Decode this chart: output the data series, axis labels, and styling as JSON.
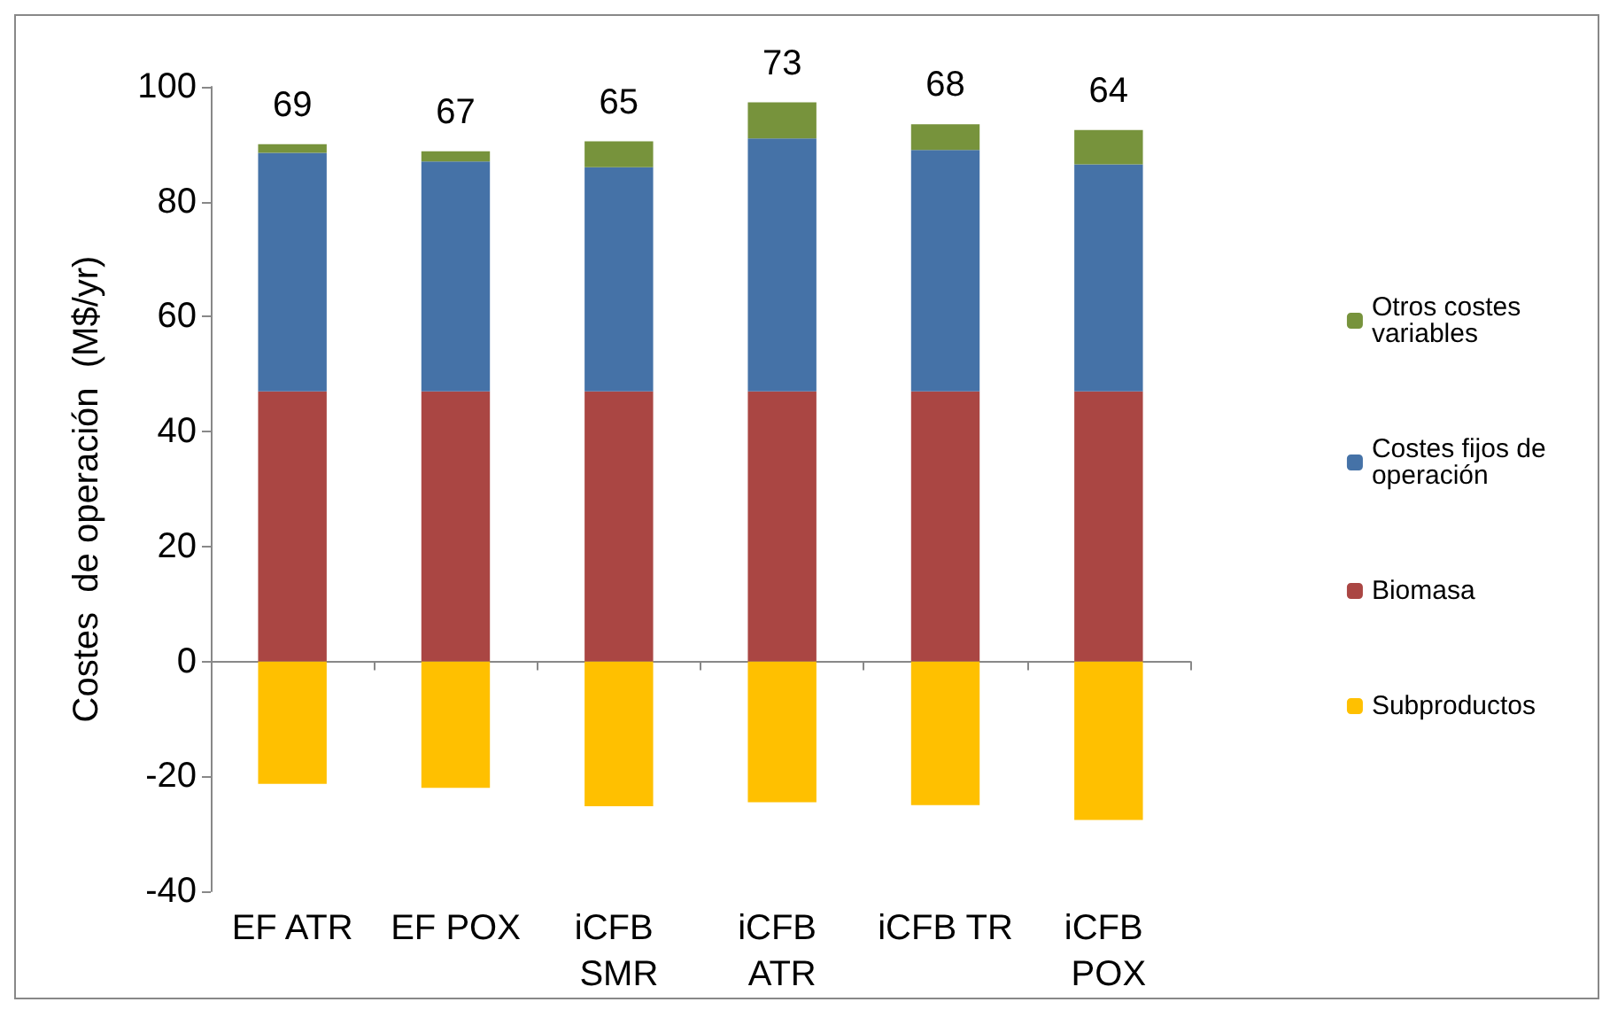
{
  "chart_data": {
    "type": "bar",
    "stacked": true,
    "ylabel": "Costes  de operación  (M$/yr)",
    "categories": [
      "EF ATR",
      "EF POX",
      "iCFB SMR",
      "iCFB ATR",
      "iCFB TR",
      "iCFB POX"
    ],
    "series": [
      {
        "name": "Subproductos",
        "color": "#ffc000",
        "values": [
          -21.3,
          -22,
          -25.2,
          -24.5,
          -25,
          -27.6
        ]
      },
      {
        "name": "Biomasa",
        "color": "#aa4643",
        "values": [
          47,
          47,
          47,
          47,
          47,
          47
        ]
      },
      {
        "name": "Costes fijos de operación",
        "color": "#4572a7",
        "values": [
          41.5,
          40,
          39,
          44,
          42,
          39.5
        ]
      },
      {
        "name": "Otros costes variables",
        "color": "#77933c",
        "values": [
          1.5,
          1.8,
          4.5,
          6.3,
          4.5,
          6
        ]
      }
    ],
    "totals": [
      "69",
      "67",
      "65",
      "73",
      "68",
      "64"
    ],
    "ylim": [
      -40,
      100
    ],
    "yticks": [
      -40,
      -20,
      0,
      20,
      40,
      60,
      80,
      100
    ],
    "legend": "right"
  }
}
